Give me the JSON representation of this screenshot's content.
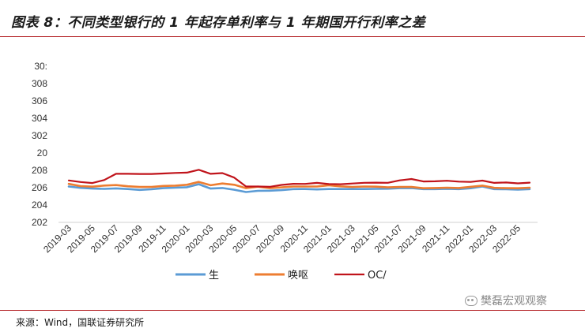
{
  "header": {
    "title": "图表 8：不同类型银行的 1 年起存单利率与 1 年期国开行利率之差"
  },
  "footer": {
    "source": "来源：Wind，国联证券研究所",
    "watermark": "樊磊宏观观察"
  },
  "chart_data": {
    "type": "line",
    "title": "图表 8：不同类型银行的 1 年起存单利率与 1 年期国开行利率之差",
    "xlabel": "",
    "ylabel": "",
    "ylim": [
      202,
      310
    ],
    "ytick_labels": [
      "202",
      "204",
      "206",
      "208",
      "20",
      "302",
      "304",
      "306",
      "308",
      "30:"
    ],
    "grid": false,
    "legend_position": "bottom",
    "xtick_labels": [
      "2019-03",
      "2019-05",
      "2019-07",
      "2019-09",
      "2019-11",
      "2020-01",
      "2020-03",
      "2020-05",
      "2020-07",
      "2020-09",
      "2020-11",
      "2021-01",
      "2021-03",
      "2021-05",
      "2021-07",
      "2021-09",
      "2021-11",
      "2022-01",
      "2022-03",
      "2022-05"
    ],
    "series": [
      {
        "name": "生",
        "color": "#5b9bd5",
        "values": [
          226.8,
          225.9,
          225.4,
          225.2,
          225.5,
          225.1,
          224.5,
          224.9,
          225.7,
          226.0,
          226.3,
          228.4,
          225.4,
          225.8,
          224.6,
          223.0,
          223.8,
          223.9,
          224.3,
          225.0,
          225.1,
          224.8,
          225.1,
          225.1,
          225.1,
          225.1,
          225.2,
          225.3,
          225.7,
          225.8,
          225.0,
          225.0,
          225.2,
          225.0,
          225.6,
          226.8,
          225.0,
          224.9,
          224.7,
          225.0
        ]
      },
      {
        "name": "唤呕",
        "color": "#ed7d31",
        "values": [
          228.6,
          227.1,
          226.7,
          227.5,
          227.8,
          227.0,
          226.5,
          226.5,
          227.2,
          227.4,
          228.0,
          230.0,
          227.7,
          228.9,
          228.0,
          225.7,
          226.7,
          225.7,
          226.2,
          226.8,
          226.8,
          226.8,
          227.7,
          226.9,
          226.5,
          226.8,
          226.7,
          226.2,
          226.5,
          226.5,
          225.6,
          225.8,
          226.0,
          225.8,
          226.6,
          227.4,
          225.9,
          225.7,
          225.6,
          226.0
        ]
      },
      {
        "name": "OC/",
        "color": "#c0141b",
        "values": [
          231.0,
          229.9,
          229.2,
          231.3,
          235.6,
          235.6,
          235.5,
          235.5,
          235.8,
          236.2,
          236.4,
          238.4,
          235.6,
          236.1,
          233.0,
          226.8,
          226.8,
          226.6,
          227.9,
          228.7,
          228.6,
          229.3,
          228.5,
          228.4,
          228.9,
          229.4,
          229.5,
          229.4,
          231.1,
          232.0,
          230.3,
          230.4,
          230.8,
          230.2,
          230.0,
          230.9,
          229.3,
          229.6,
          229.0,
          229.5
        ]
      }
    ]
  }
}
